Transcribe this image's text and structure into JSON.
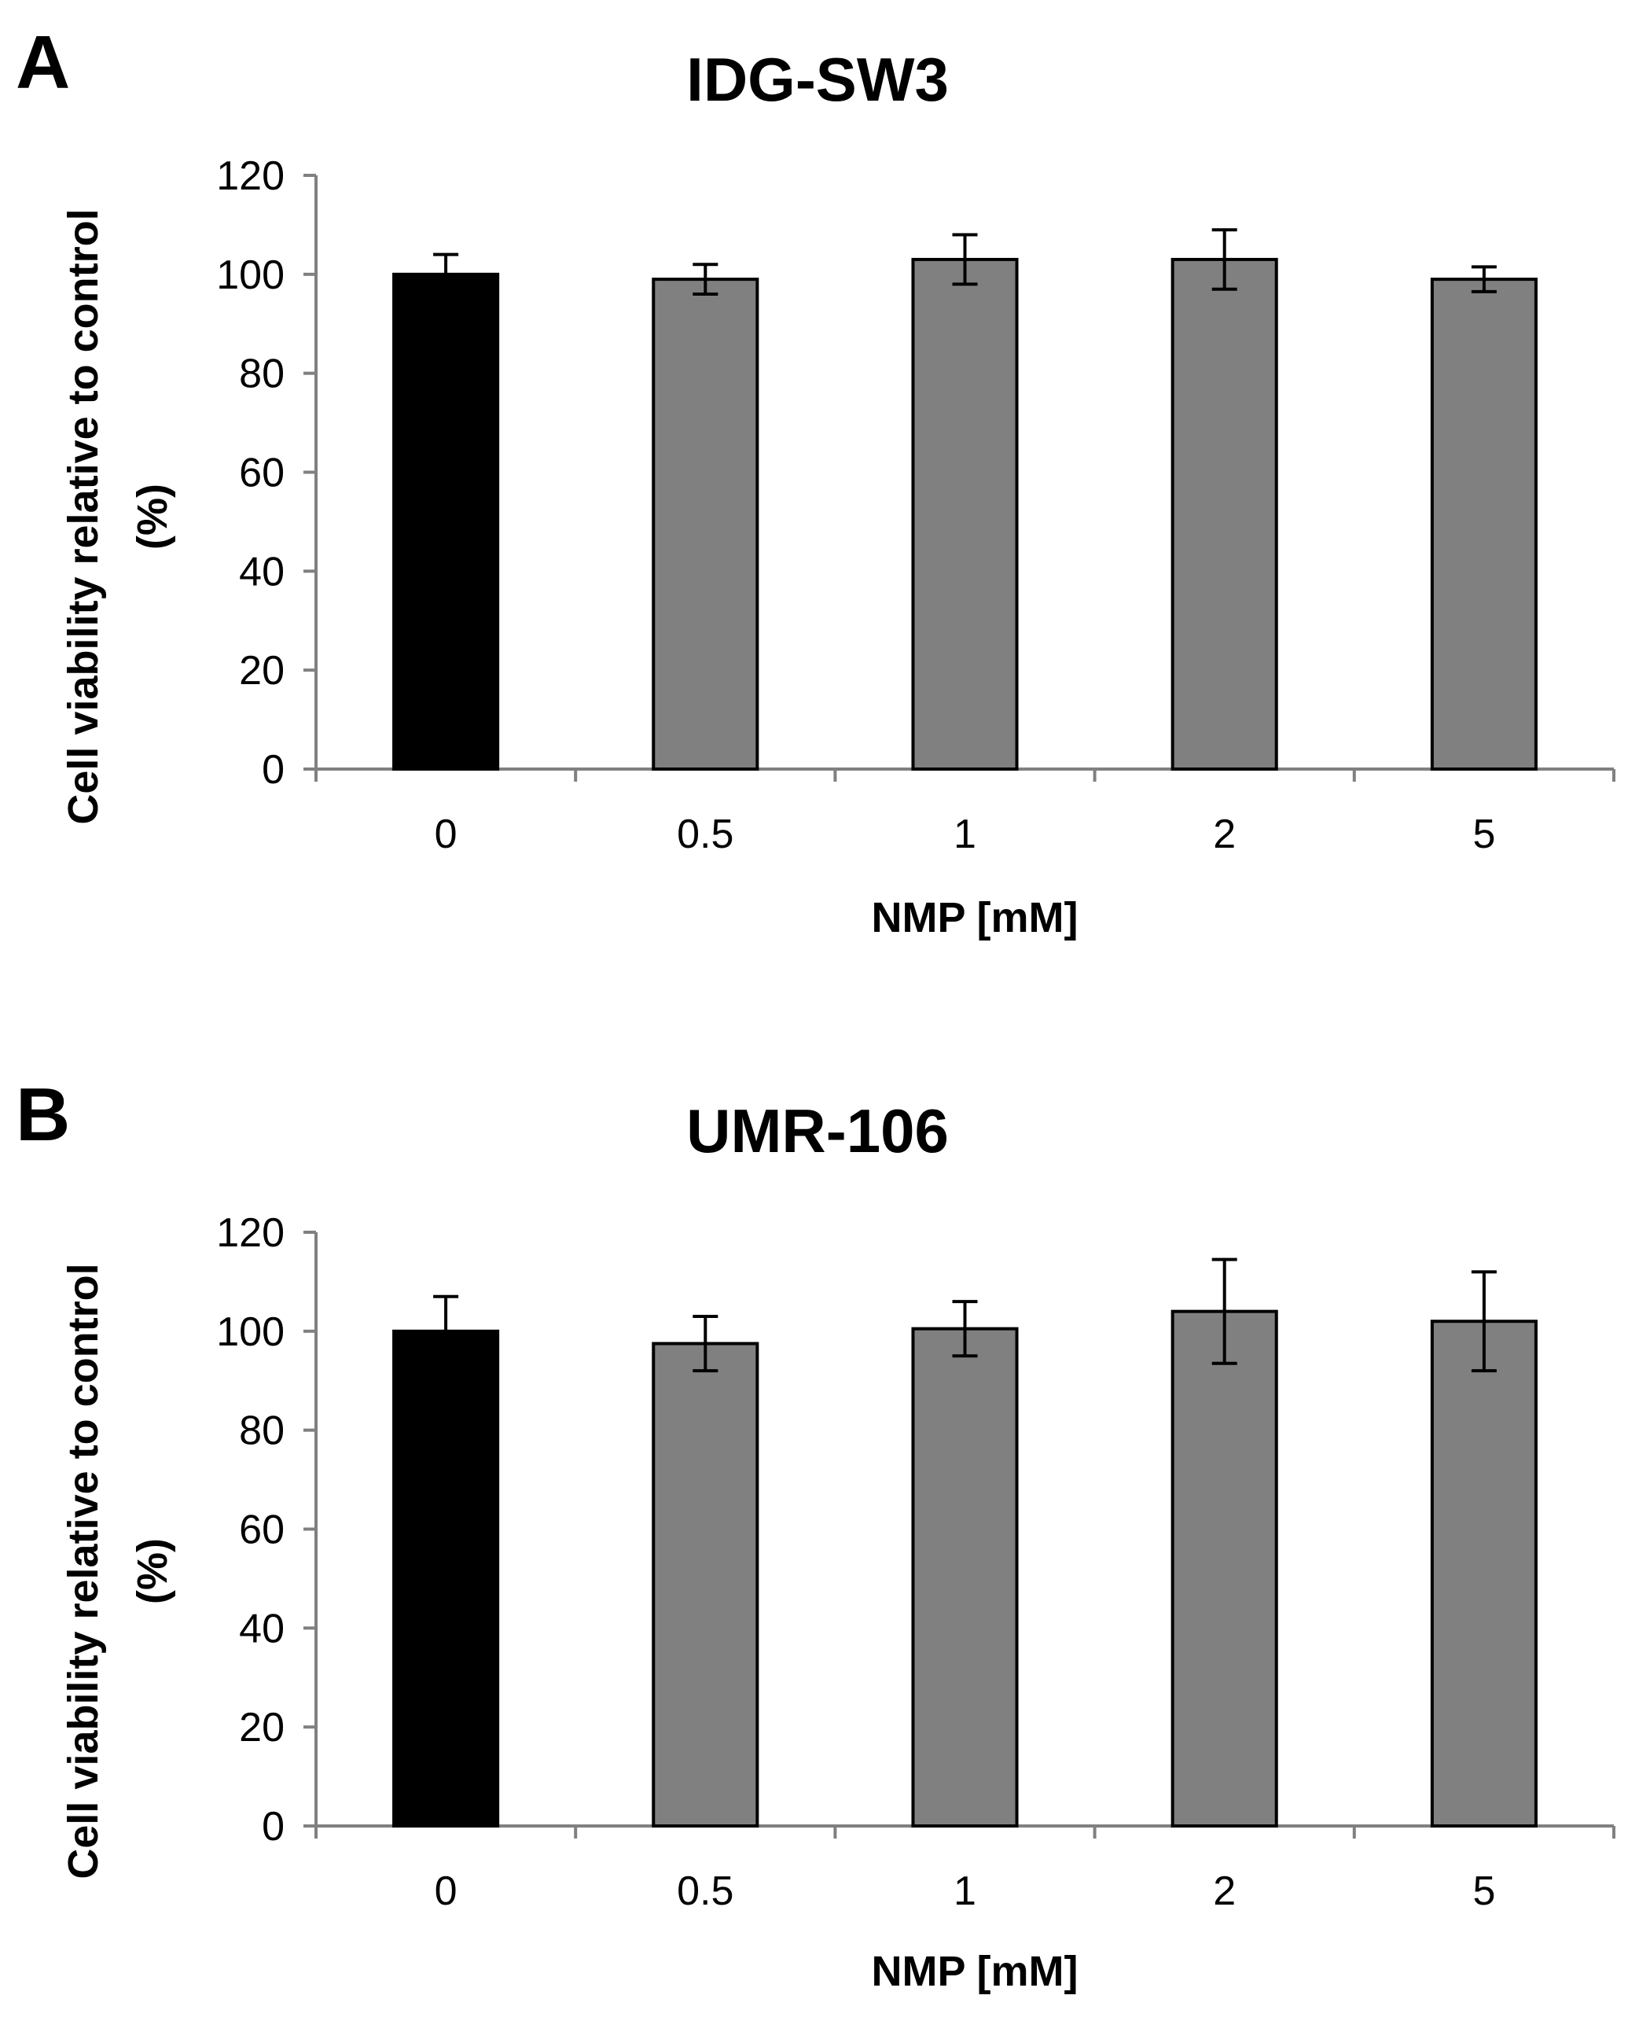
{
  "colors": {
    "control": "#000000",
    "treated": "#808080"
  },
  "chart_data": [
    {
      "type": "bar",
      "panel_label": "A",
      "title": "IDG-SW3",
      "xlabel": "NMP [mM]",
      "ylabel_line1": "Cell viability relative to control",
      "ylabel_line2": "(%)",
      "categories": [
        "0",
        "0.5",
        "1",
        "2",
        "5"
      ],
      "values": [
        100,
        99,
        103,
        103,
        99
      ],
      "errors": [
        4,
        3,
        5,
        6,
        2.5
      ],
      "ylim": [
        0,
        120
      ],
      "yticks": [
        "0",
        "20",
        "40",
        "60",
        "80",
        "100",
        "120"
      ],
      "grid": false
    },
    {
      "type": "bar",
      "panel_label": "B",
      "title": "UMR-106",
      "xlabel": "NMP [mM]",
      "ylabel_line1": "Cell viability relative to control",
      "ylabel_line2": "(%)",
      "categories": [
        "0",
        "0.5",
        "1",
        "2",
        "5"
      ],
      "values": [
        100,
        97.5,
        100.5,
        104,
        102
      ],
      "errors": [
        7,
        5.5,
        5.5,
        10.5,
        10
      ],
      "ylim": [
        0,
        120
      ],
      "yticks": [
        "0",
        "20",
        "40",
        "60",
        "80",
        "100",
        "120"
      ],
      "grid": false
    }
  ]
}
